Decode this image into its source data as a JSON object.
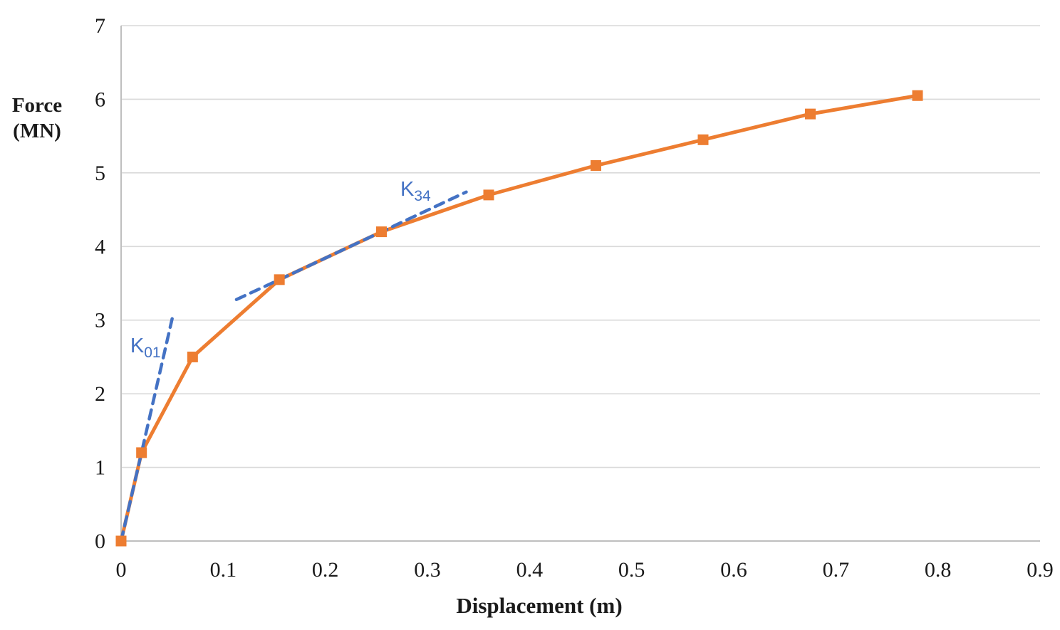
{
  "chart_data": {
    "type": "line",
    "title": "",
    "xlabel": "Displacement (m)",
    "ylabel_lines": [
      "Force",
      "(MN)"
    ],
    "xlim": [
      0,
      0.9
    ],
    "ylim": [
      0,
      7
    ],
    "x_ticks": [
      0,
      0.1,
      0.2,
      0.3,
      0.4,
      0.5,
      0.6,
      0.7,
      0.8,
      0.9
    ],
    "x_tick_labels": [
      "0",
      "0.1",
      "0.2",
      "0.3",
      "0.4",
      "0.5",
      "0.6",
      "0.7",
      "0.8",
      "0.9"
    ],
    "y_ticks": [
      0,
      1,
      2,
      3,
      4,
      5,
      6,
      7
    ],
    "y_tick_labels": [
      "0",
      "1",
      "2",
      "3",
      "4",
      "5",
      "6",
      "7"
    ],
    "grid": "horizontal-only",
    "legend": "none",
    "series": [
      {
        "name": "force-displacement-curve",
        "color": "#ED7D31",
        "line_style": "solid",
        "marker": "square",
        "x": [
          0,
          0.02,
          0.07,
          0.155,
          0.255,
          0.36,
          0.465,
          0.57,
          0.675,
          0.78
        ],
        "y": [
          0,
          1.2,
          2.5,
          3.55,
          4.2,
          4.7,
          5.1,
          5.45,
          5.8,
          6.05
        ]
      },
      {
        "name": "initial-stiffness-line",
        "color": "#4472C4",
        "line_style": "dashed",
        "marker": "none",
        "x": [
          0,
          0.02,
          0.05
        ],
        "y": [
          0,
          1.2,
          3.02
        ],
        "label": {
          "main": "K",
          "sub": "01",
          "x": 0.009,
          "y": 2.56
        }
      },
      {
        "name": "tangent-stiffness-line",
        "color": "#4472C4",
        "line_style": "dashed",
        "marker": "none",
        "x": [
          0.113,
          0.155,
          0.255,
          0.338
        ],
        "y": [
          3.28,
          3.55,
          4.2,
          4.74
        ],
        "label": {
          "main": "K",
          "sub": "34",
          "x": 0.2735,
          "y": 4.69
        }
      }
    ],
    "colors": {
      "series": "#ED7D31",
      "stiffness": "#4472C4",
      "gridline": "#D9D9D9",
      "axis_line": "#BFBFBF",
      "text": "#1a1a1a"
    }
  }
}
